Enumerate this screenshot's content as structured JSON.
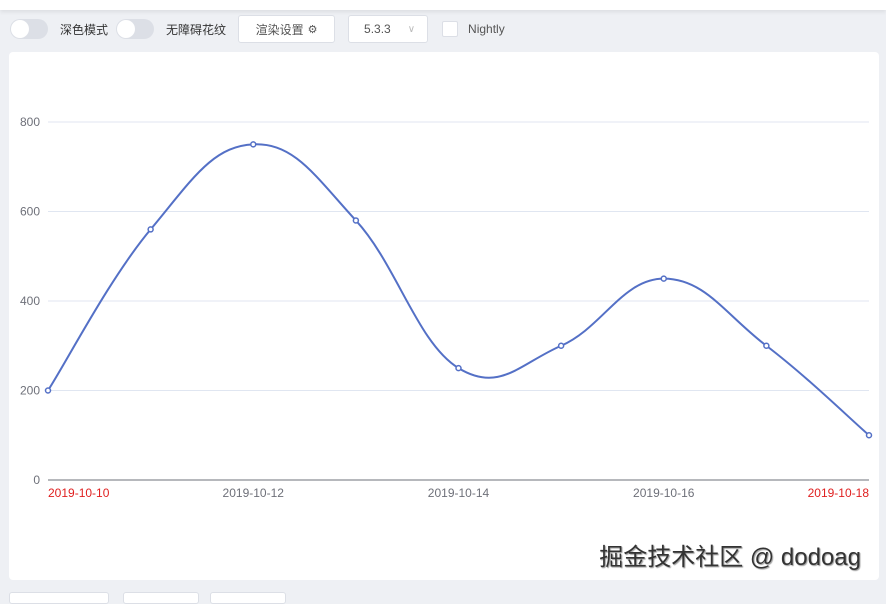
{
  "toolbar": {
    "dark_mode": "深色模式",
    "aria_pattern": "无障碍花纹",
    "render_settings": "渲染设置",
    "version": "5.3.3",
    "nightly": "Nightly"
  },
  "watermark": "掘金技术社区 @ dodoag",
  "colors": {
    "series": "#5470c6",
    "axis_highlight": "#e01f1f",
    "axis_label": "#6e7079",
    "grid": "#e0e6f1"
  },
  "chart_data": {
    "type": "line",
    "smooth": true,
    "x": [
      "2019-10-10",
      "2019-10-11",
      "2019-10-12",
      "2019-10-13",
      "2019-10-14",
      "2019-10-15",
      "2019-10-16",
      "2019-10-17",
      "2019-10-18"
    ],
    "values": [
      200,
      560,
      750,
      580,
      250,
      300,
      450,
      300,
      100
    ],
    "xticks": [
      "2019-10-10",
      "2019-10-12",
      "2019-10-14",
      "2019-10-16",
      "2019-10-18"
    ],
    "xticks_highlighted": [
      "2019-10-10",
      "2019-10-18"
    ],
    "yticks": [
      "0",
      "200",
      "400",
      "600",
      "800"
    ],
    "ylim": [
      0,
      800
    ],
    "grid": true
  }
}
